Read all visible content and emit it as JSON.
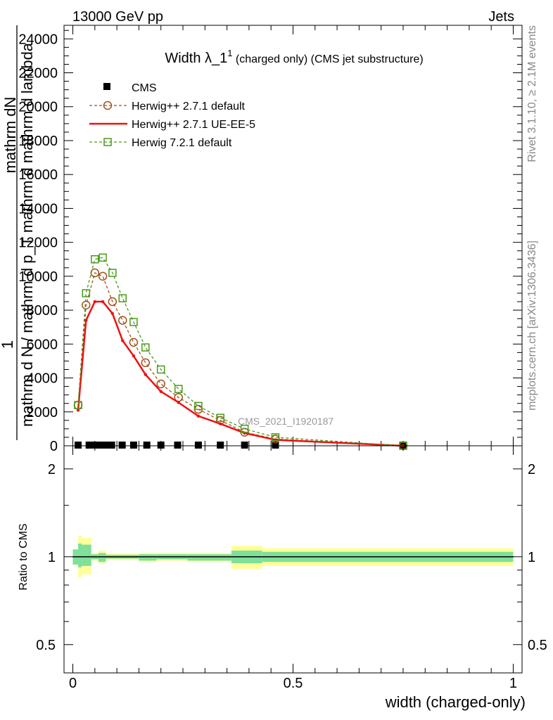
{
  "header": {
    "left": "13000 GeV pp",
    "right": "Jets"
  },
  "side_labels": {
    "rivet": "Rivet 3.1.10, ≥ 2.1M events",
    "mcplots": "mcplots.cern.ch [arXiv:1306.3436]"
  },
  "watermark": "CMS_2021_I1920187",
  "chart_data": [
    {
      "type": "line",
      "title": "Width λ_1¹ (charged only) (CMS jet substructure)",
      "title_main": "Width λ_1",
      "title_sup": "1",
      "title_rest": " (charged only) (CMS jet substructure)",
      "ylabel_num": "1",
      "ylabel_frac_top": "mathrm dN",
      "ylabel_frac_bottom": "mathrm d N / mathrm d p_T mathrm d mathrm d lambda",
      "ylabel_frac_bottom_b": "mathrm d p_T mathrm d lambda",
      "ylim": [
        0,
        24800
      ],
      "yticks": [
        0,
        2000,
        4000,
        6000,
        8000,
        10000,
        12000,
        14000,
        16000,
        18000,
        20000,
        22000,
        24000
      ],
      "ytick_labels": [
        "0",
        "2000",
        "4000",
        "6000",
        "8000",
        "10000",
        "12000",
        "14000",
        "16000",
        "18000",
        "20000",
        "22000",
        "24000"
      ],
      "xlim": [
        -0.02,
        1.02
      ],
      "legend_position": "top-left",
      "series": [
        {
          "name": "CMS",
          "style": "data",
          "color": "#000000",
          "x": [
            0.012,
            0.037,
            0.05,
            0.062,
            0.075,
            0.088,
            0.112,
            0.138,
            0.168,
            0.2,
            0.238,
            0.285,
            0.335,
            0.39,
            0.46,
            0.75
          ],
          "y": [
            0,
            0,
            0,
            0,
            0,
            0,
            0,
            0,
            0,
            0,
            0,
            0,
            0,
            0,
            0,
            0
          ]
        },
        {
          "name": "Herwig++ 2.7.1 default",
          "style": "circle-dashed",
          "color": "#a0521a",
          "x": [
            0.012,
            0.03,
            0.05,
            0.068,
            0.09,
            0.113,
            0.138,
            0.165,
            0.2,
            0.24,
            0.285,
            0.335,
            0.39,
            0.46,
            0.75
          ],
          "y": [
            2400,
            8300,
            10200,
            10000,
            8500,
            7400,
            6100,
            4900,
            3650,
            2850,
            2150,
            1500,
            800,
            400,
            0
          ]
        },
        {
          "name": "Herwig++ 2.7.1 UE-EE-5",
          "style": "solid",
          "color": "#ee1111",
          "x": [
            0.012,
            0.03,
            0.05,
            0.068,
            0.09,
            0.113,
            0.138,
            0.165,
            0.2,
            0.24,
            0.285,
            0.335,
            0.39,
            0.46,
            0.75
          ],
          "y": [
            2100,
            7400,
            8500,
            8500,
            7800,
            6200,
            5300,
            4200,
            3200,
            2550,
            1750,
            1300,
            750,
            350,
            0
          ]
        },
        {
          "name": "Herwig 7.2.1 default",
          "style": "square-dashed",
          "color": "#4a9a1a",
          "x": [
            0.012,
            0.03,
            0.05,
            0.068,
            0.09,
            0.113,
            0.138,
            0.165,
            0.2,
            0.24,
            0.285,
            0.335,
            0.39,
            0.46,
            0.75
          ],
          "y": [
            2400,
            9000,
            11000,
            11100,
            10200,
            8700,
            7300,
            5800,
            4500,
            3350,
            2350,
            1650,
            1000,
            500,
            0
          ]
        }
      ]
    },
    {
      "type": "area",
      "ylabel": "Ratio to CMS",
      "xlabel": "width (charged-only)",
      "ylim": [
        0.4,
        2.4
      ],
      "log_y": true,
      "yticks": [
        0.5,
        1,
        2
      ],
      "ytick_labels": [
        "0.5",
        "1",
        "2"
      ],
      "xticks": [
        0,
        0.5,
        1
      ],
      "xtick_labels": [
        "0",
        "0.5",
        "1"
      ],
      "xlim": [
        -0.02,
        1.02
      ],
      "band_colors": {
        "outer": "#ffff99",
        "inner": "#7fe09a"
      },
      "bins": [
        {
          "x0": 0.0,
          "x1": 0.012,
          "inner": [
            0.94,
            1.06
          ],
          "outer": [
            0.94,
            1.06
          ]
        },
        {
          "x0": 0.012,
          "x1": 0.02,
          "inner": [
            0.92,
            1.11
          ],
          "outer": [
            0.85,
            1.18
          ]
        },
        {
          "x0": 0.02,
          "x1": 0.042,
          "inner": [
            0.93,
            1.1
          ],
          "outer": [
            0.87,
            1.16
          ]
        },
        {
          "x0": 0.042,
          "x1": 0.058,
          "inner": [
            0.98,
            1.02
          ],
          "outer": [
            0.97,
            1.03
          ]
        },
        {
          "x0": 0.058,
          "x1": 0.075,
          "inner": [
            0.96,
            1.03
          ],
          "outer": [
            0.95,
            1.05
          ]
        },
        {
          "x0": 0.075,
          "x1": 0.15,
          "inner": [
            0.985,
            1.015
          ],
          "outer": [
            0.975,
            1.025
          ]
        },
        {
          "x0": 0.15,
          "x1": 0.19,
          "inner": [
            0.97,
            1.02
          ],
          "outer": [
            0.96,
            1.03
          ]
        },
        {
          "x0": 0.19,
          "x1": 0.26,
          "inner": [
            0.98,
            1.02
          ],
          "outer": [
            0.97,
            1.03
          ]
        },
        {
          "x0": 0.26,
          "x1": 0.36,
          "inner": [
            0.97,
            1.02
          ],
          "outer": [
            0.96,
            1.03
          ]
        },
        {
          "x0": 0.36,
          "x1": 0.43,
          "inner": [
            0.95,
            1.05
          ],
          "outer": [
            0.91,
            1.09
          ]
        },
        {
          "x0": 0.43,
          "x1": 1.0,
          "inner": [
            0.96,
            1.04
          ],
          "outer": [
            0.93,
            1.07
          ]
        }
      ]
    }
  ]
}
